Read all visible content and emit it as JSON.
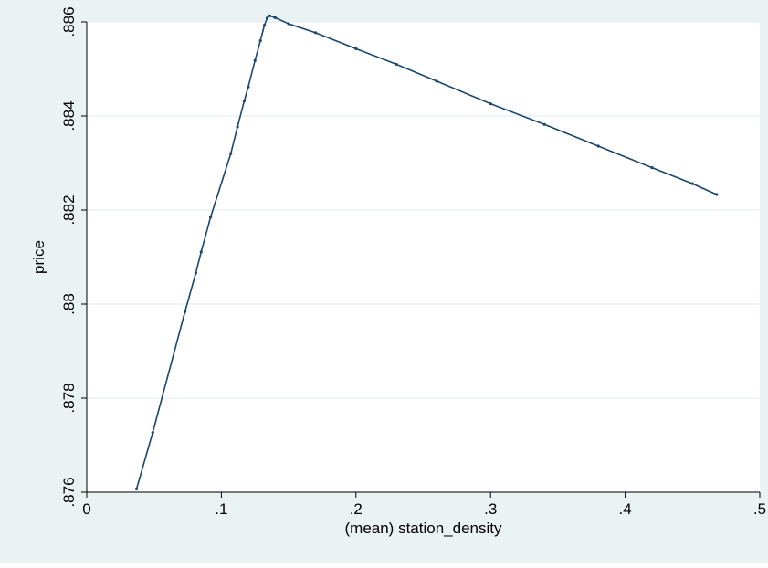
{
  "chart_data": {
    "type": "line",
    "title": "",
    "xlabel": "(mean) station_density",
    "ylabel": "price",
    "xlim": [
      0,
      0.5
    ],
    "ylim": [
      0.876,
      0.886
    ],
    "xticks": [
      0,
      0.1,
      0.2,
      0.3,
      0.4,
      0.5
    ],
    "xtick_labels": [
      "0",
      ".1",
      ".2",
      ".3",
      ".4",
      ".5"
    ],
    "yticks": [
      0.876,
      0.878,
      0.88,
      0.882,
      0.884,
      0.886
    ],
    "ytick_labels": [
      ".876",
      ".878",
      ".88",
      ".882",
      ".884",
      ".886"
    ],
    "grid": true,
    "legend": "none",
    "colors": {
      "outer_background": "#EAF2F3",
      "plot_background": "#FFFFFF",
      "line": "#1A476F",
      "grid": "#EAF2F3",
      "axis": "#000000"
    },
    "series": [
      {
        "x": [
          0.037,
          0.049,
          0.073,
          0.081,
          0.085,
          0.092,
          0.107,
          0.112,
          0.117,
          0.12,
          0.125,
          0.129,
          0.132,
          0.134,
          0.136,
          0.14,
          0.15,
          0.17,
          0.2,
          0.23,
          0.26,
          0.3,
          0.34,
          0.38,
          0.42,
          0.45,
          0.468
        ],
        "y": [
          0.87607,
          0.87727,
          0.87984,
          0.88066,
          0.88111,
          0.88185,
          0.8832,
          0.88377,
          0.88432,
          0.88462,
          0.88518,
          0.8856,
          0.88593,
          0.88608,
          0.88613,
          0.88609,
          0.88596,
          0.88577,
          0.88543,
          0.8851,
          0.88474,
          0.88426,
          0.88382,
          0.88336,
          0.8829,
          0.88256,
          0.88233
        ]
      }
    ]
  }
}
